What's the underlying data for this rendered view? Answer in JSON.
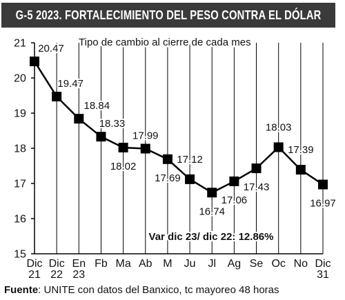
{
  "title": "G-5 2023. FORTALECIMIENTO DEL PESO CONTRA EL DÓLAR",
  "footer": {
    "source_label": "Fuente",
    "source_text": ": UNITE con datos del Banxico, tc mayoreo 48 horas"
  },
  "chart_data": {
    "type": "line",
    "subtitle": "Tipo de cambio al cierre de cada mes",
    "annotation": "Var dic 23/ dic 22: 12.86%",
    "categories": [
      [
        "Dic",
        "21"
      ],
      [
        "Dic",
        "22"
      ],
      [
        "En",
        "23"
      ],
      [
        "Fb"
      ],
      [
        "Ma"
      ],
      [
        "Ab"
      ],
      [
        "M"
      ],
      [
        "Ju"
      ],
      [
        "Jl"
      ],
      [
        "Ag"
      ],
      [
        "Se"
      ],
      [
        "Oc"
      ],
      [
        "No"
      ],
      [
        "Dic",
        "31"
      ]
    ],
    "values": [
      20.47,
      19.47,
      18.84,
      18.33,
      18.02,
      17.99,
      17.69,
      17.12,
      16.74,
      17.06,
      17.43,
      18.03,
      17.39,
      16.97
    ],
    "data_labels": [
      "20.47",
      "19.47",
      "18.84",
      "18.33",
      "18.02",
      "17.99",
      "17.69",
      "17.12",
      "16.74",
      "17.06",
      "17.43",
      "18.03",
      "17.39",
      "16.97"
    ],
    "yticks": [
      "15",
      "16",
      "17",
      "18",
      "19",
      "20",
      "21"
    ],
    "ylim": [
      15,
      21
    ],
    "grid": "vertical",
    "line_color": "#000000",
    "marker_color": "#000000",
    "title_bar_color": "#3a3a3a"
  }
}
